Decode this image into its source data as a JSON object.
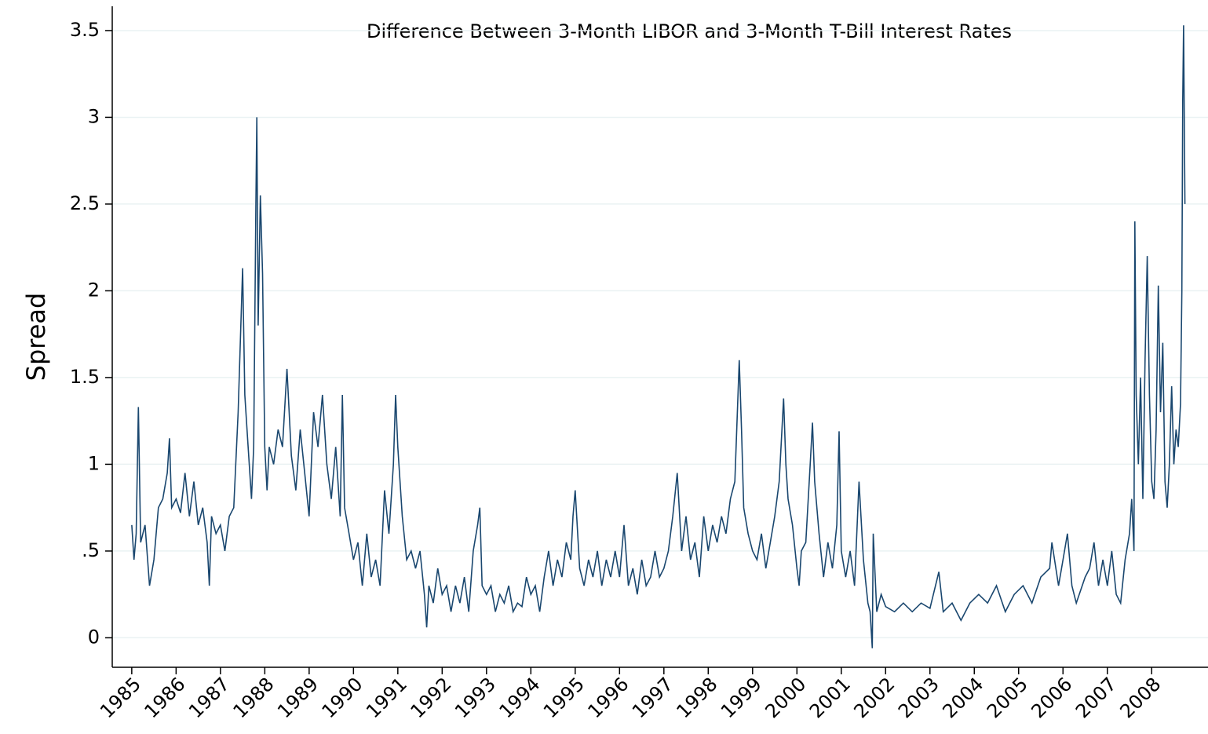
{
  "chart_data": {
    "type": "line",
    "title": "Difference Between 3-Month LIBOR and 3-Month T-Bill Interest Rates",
    "y_label": "Spread",
    "xlim": [
      1984.56,
      2009.27
    ],
    "ylim": [
      -0.17,
      3.64
    ],
    "xticks": [
      1985,
      1986,
      1987,
      1988,
      1989,
      1990,
      1991,
      1992,
      1993,
      1994,
      1995,
      1996,
      1997,
      1998,
      1999,
      2000,
      2001,
      2002,
      2003,
      2004,
      2005,
      2006,
      2007,
      2008
    ],
    "yticks": [
      0,
      {
        "value": 0.5,
        "label": ".5"
      },
      1,
      1.5,
      2,
      2.5,
      3,
      3.5
    ],
    "grid": true,
    "series": [
      {
        "name": "Spread",
        "color": "#1a476f",
        "x": [
          1985.0,
          1985.05,
          1985.1,
          1985.15,
          1985.2,
          1985.3,
          1985.4,
          1985.5,
          1985.6,
          1985.7,
          1985.8,
          1985.85,
          1985.9,
          1986.0,
          1986.1,
          1986.2,
          1986.3,
          1986.4,
          1986.5,
          1986.6,
          1986.7,
          1986.75,
          1986.8,
          1986.9,
          1987.0,
          1987.1,
          1987.2,
          1987.3,
          1987.4,
          1987.5,
          1987.55,
          1987.6,
          1987.7,
          1987.75,
          1987.8,
          1987.82,
          1987.85,
          1987.9,
          1987.95,
          1988.0,
          1988.05,
          1988.1,
          1988.2,
          1988.3,
          1988.4,
          1988.5,
          1988.6,
          1988.7,
          1988.8,
          1988.9,
          1989.0,
          1989.1,
          1989.2,
          1989.3,
          1989.4,
          1989.5,
          1989.6,
          1989.7,
          1989.75,
          1989.8,
          1989.9,
          1990.0,
          1990.1,
          1990.2,
          1990.3,
          1990.4,
          1990.5,
          1990.6,
          1990.7,
          1990.8,
          1990.9,
          1990.95,
          1991.0,
          1991.1,
          1991.2,
          1991.3,
          1991.4,
          1991.5,
          1991.6,
          1991.65,
          1991.7,
          1991.8,
          1991.9,
          1992.0,
          1992.1,
          1992.2,
          1992.3,
          1992.4,
          1992.5,
          1992.6,
          1992.7,
          1992.8,
          1992.85,
          1992.9,
          1993.0,
          1993.1,
          1993.2,
          1993.3,
          1993.4,
          1993.5,
          1993.6,
          1993.7,
          1993.8,
          1993.9,
          1994.0,
          1994.1,
          1994.2,
          1994.3,
          1994.4,
          1994.5,
          1994.6,
          1994.7,
          1994.8,
          1994.9,
          1994.95,
          1995.0,
          1995.1,
          1995.2,
          1995.3,
          1995.4,
          1995.5,
          1995.6,
          1995.7,
          1995.8,
          1995.9,
          1996.0,
          1996.1,
          1996.2,
          1996.3,
          1996.4,
          1996.5,
          1996.6,
          1996.7,
          1996.8,
          1996.9,
          1997.0,
          1997.1,
          1997.2,
          1997.3,
          1997.4,
          1997.5,
          1997.6,
          1997.7,
          1997.8,
          1997.9,
          1998.0,
          1998.1,
          1998.2,
          1998.3,
          1998.4,
          1998.5,
          1998.6,
          1998.7,
          1998.75,
          1998.8,
          1998.9,
          1999.0,
          1999.1,
          1999.2,
          1999.3,
          1999.4,
          1999.5,
          1999.6,
          1999.7,
          1999.75,
          1999.8,
          1999.9,
          2000.0,
          2000.05,
          2000.1,
          2000.2,
          2000.3,
          2000.35,
          2000.4,
          2000.5,
          2000.6,
          2000.7,
          2000.8,
          2000.9,
          2000.95,
          2001.0,
          2001.1,
          2001.2,
          2001.3,
          2001.4,
          2001.5,
          2001.6,
          2001.65,
          2001.7,
          2001.72,
          2001.8,
          2001.9,
          2002.0,
          2002.2,
          2002.4,
          2002.6,
          2002.8,
          2003.0,
          2003.2,
          2003.3,
          2003.5,
          2003.7,
          2003.9,
          2004.1,
          2004.3,
          2004.5,
          2004.7,
          2004.9,
          2005.1,
          2005.3,
          2005.5,
          2005.7,
          2005.75,
          2005.9,
          2006.0,
          2006.1,
          2006.2,
          2006.3,
          2006.5,
          2006.6,
          2006.7,
          2006.8,
          2006.9,
          2007.0,
          2007.1,
          2007.2,
          2007.3,
          2007.4,
          2007.5,
          2007.55,
          2007.6,
          2007.62,
          2007.65,
          2007.7,
          2007.75,
          2007.8,
          2007.85,
          2007.9,
          2007.95,
          2008.0,
          2008.05,
          2008.1,
          2008.15,
          2008.2,
          2008.25,
          2008.3,
          2008.35,
          2008.4,
          2008.45,
          2008.5,
          2008.55,
          2008.6,
          2008.65,
          2008.68,
          2008.7,
          2008.72,
          2008.75
        ],
        "values": [
          0.65,
          0.45,
          0.6,
          1.33,
          0.55,
          0.65,
          0.3,
          0.45,
          0.75,
          0.8,
          0.95,
          1.15,
          0.75,
          0.8,
          0.72,
          0.95,
          0.7,
          0.9,
          0.65,
          0.75,
          0.55,
          0.3,
          0.7,
          0.6,
          0.65,
          0.5,
          0.7,
          0.75,
          1.3,
          2.13,
          1.4,
          1.2,
          0.8,
          1.1,
          2.5,
          3.0,
          1.8,
          2.55,
          2.1,
          1.1,
          0.85,
          1.1,
          1.0,
          1.2,
          1.1,
          1.55,
          1.05,
          0.85,
          1.2,
          0.95,
          0.7,
          1.3,
          1.1,
          1.4,
          1.0,
          0.8,
          1.1,
          0.7,
          1.4,
          0.75,
          0.6,
          0.45,
          0.55,
          0.3,
          0.6,
          0.35,
          0.45,
          0.3,
          0.85,
          0.6,
          1.0,
          1.4,
          1.1,
          0.7,
          0.45,
          0.5,
          0.4,
          0.5,
          0.25,
          0.06,
          0.3,
          0.2,
          0.4,
          0.25,
          0.3,
          0.15,
          0.3,
          0.2,
          0.35,
          0.15,
          0.5,
          0.65,
          0.75,
          0.3,
          0.25,
          0.3,
          0.15,
          0.25,
          0.2,
          0.3,
          0.15,
          0.2,
          0.18,
          0.35,
          0.25,
          0.3,
          0.15,
          0.35,
          0.5,
          0.3,
          0.45,
          0.35,
          0.55,
          0.45,
          0.7,
          0.85,
          0.4,
          0.3,
          0.45,
          0.35,
          0.5,
          0.3,
          0.45,
          0.35,
          0.5,
          0.35,
          0.65,
          0.3,
          0.4,
          0.25,
          0.45,
          0.3,
          0.35,
          0.5,
          0.35,
          0.4,
          0.5,
          0.7,
          0.95,
          0.5,
          0.7,
          0.45,
          0.55,
          0.35,
          0.7,
          0.5,
          0.65,
          0.55,
          0.7,
          0.6,
          0.8,
          0.9,
          1.6,
          1.2,
          0.75,
          0.6,
          0.5,
          0.45,
          0.6,
          0.4,
          0.55,
          0.7,
          0.9,
          1.38,
          1.0,
          0.8,
          0.65,
          0.4,
          0.3,
          0.5,
          0.55,
          1.0,
          1.24,
          0.9,
          0.6,
          0.35,
          0.55,
          0.4,
          0.65,
          1.19,
          0.5,
          0.35,
          0.5,
          0.3,
          0.9,
          0.45,
          0.2,
          0.15,
          -0.06,
          0.6,
          0.15,
          0.25,
          0.18,
          0.15,
          0.2,
          0.15,
          0.2,
          0.17,
          0.38,
          0.15,
          0.2,
          0.1,
          0.2,
          0.25,
          0.2,
          0.3,
          0.15,
          0.25,
          0.3,
          0.2,
          0.35,
          0.4,
          0.55,
          0.3,
          0.45,
          0.6,
          0.3,
          0.2,
          0.35,
          0.4,
          0.55,
          0.3,
          0.45,
          0.3,
          0.5,
          0.25,
          0.2,
          0.45,
          0.6,
          0.8,
          0.5,
          2.4,
          1.4,
          1.0,
          1.5,
          0.8,
          1.6,
          2.2,
          1.4,
          0.9,
          0.8,
          1.2,
          2.03,
          1.3,
          1.7,
          0.9,
          0.75,
          1.0,
          1.45,
          1.0,
          1.2,
          1.1,
          1.35,
          2.0,
          3.1,
          3.53,
          2.5
        ]
      }
    ]
  }
}
